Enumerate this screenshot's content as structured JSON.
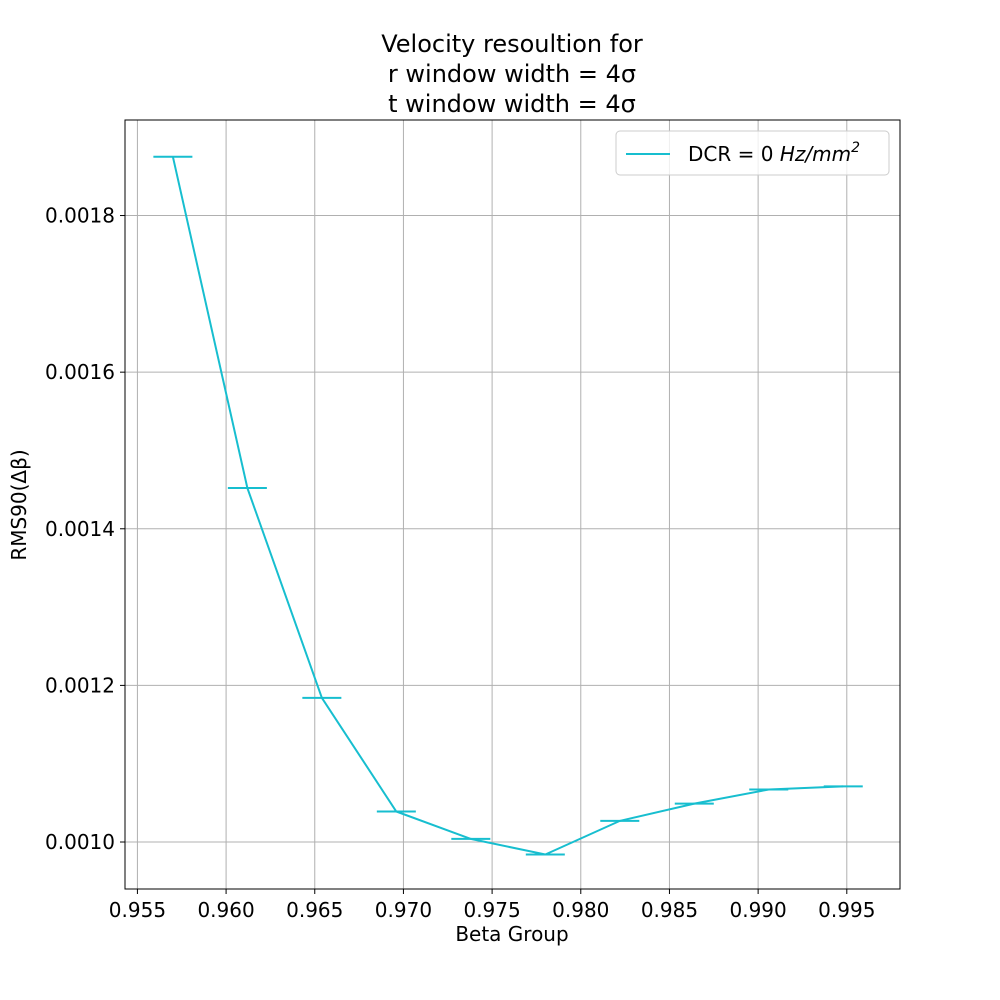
{
  "chart_data": {
    "type": "line",
    "title_lines": [
      "Velocity resoultion for",
      "r window width = 4σ",
      "t window width = 4σ"
    ],
    "xlabel": "Beta Group",
    "ylabel": "RMS90(Δβ)",
    "xlim": [
      0.9543,
      0.998
    ],
    "ylim": [
      0.00094,
      0.001922
    ],
    "xticks": [
      0.955,
      0.96,
      0.965,
      0.97,
      0.975,
      0.98,
      0.985,
      0.99,
      0.995
    ],
    "xtick_labels": [
      "0.955",
      "0.960",
      "0.965",
      "0.970",
      "0.975",
      "0.980",
      "0.985",
      "0.990",
      "0.995"
    ],
    "yticks": [
      0.001,
      0.0012,
      0.0014,
      0.0016,
      0.0018
    ],
    "ytick_labels": [
      "0.0010",
      "0.0012",
      "0.0014",
      "0.0016",
      "0.0018"
    ],
    "grid": true,
    "legend_position": "top-right",
    "series": [
      {
        "name": "DCR = 0 Hz/mm²",
        "legend_prefix": "DCR = 0 ",
        "legend_unit": "Hz/mm",
        "legend_sup": "2",
        "color": "#17becf",
        "x": [
          0.957,
          0.9612,
          0.9654,
          0.9696,
          0.9738,
          0.978,
          0.9822,
          0.9864,
          0.9906,
          0.9948
        ],
        "y": [
          0.001875,
          0.001452,
          0.001184,
          0.001039,
          0.001004,
          0.000984,
          0.001027,
          0.001049,
          0.001067,
          0.001071
        ],
        "xerr": [
          0.0011,
          0.0011,
          0.0011,
          0.0011,
          0.0011,
          0.0011,
          0.0011,
          0.0011,
          0.0011,
          0.0011
        ]
      }
    ]
  }
}
